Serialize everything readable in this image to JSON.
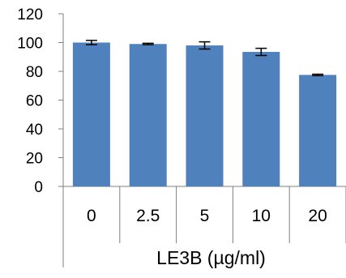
{
  "chart_data": {
    "type": "bar",
    "categories": [
      "0",
      "2.5",
      "5",
      "10",
      "20"
    ],
    "values": [
      100,
      99,
      98,
      93.5,
      77.5
    ],
    "errors": [
      1.5,
      0.5,
      2.5,
      2.5,
      0.5
    ],
    "xlabel": "LE3B (µg/ml)",
    "ylabel": "",
    "title": "",
    "ylim": [
      0,
      120
    ],
    "yticks": [
      0,
      20,
      40,
      60,
      80,
      100,
      120
    ],
    "grid": false,
    "bar_color": "#4F81BD",
    "error_bar_color": "#000000",
    "axis_color": "#7F7F7F"
  }
}
